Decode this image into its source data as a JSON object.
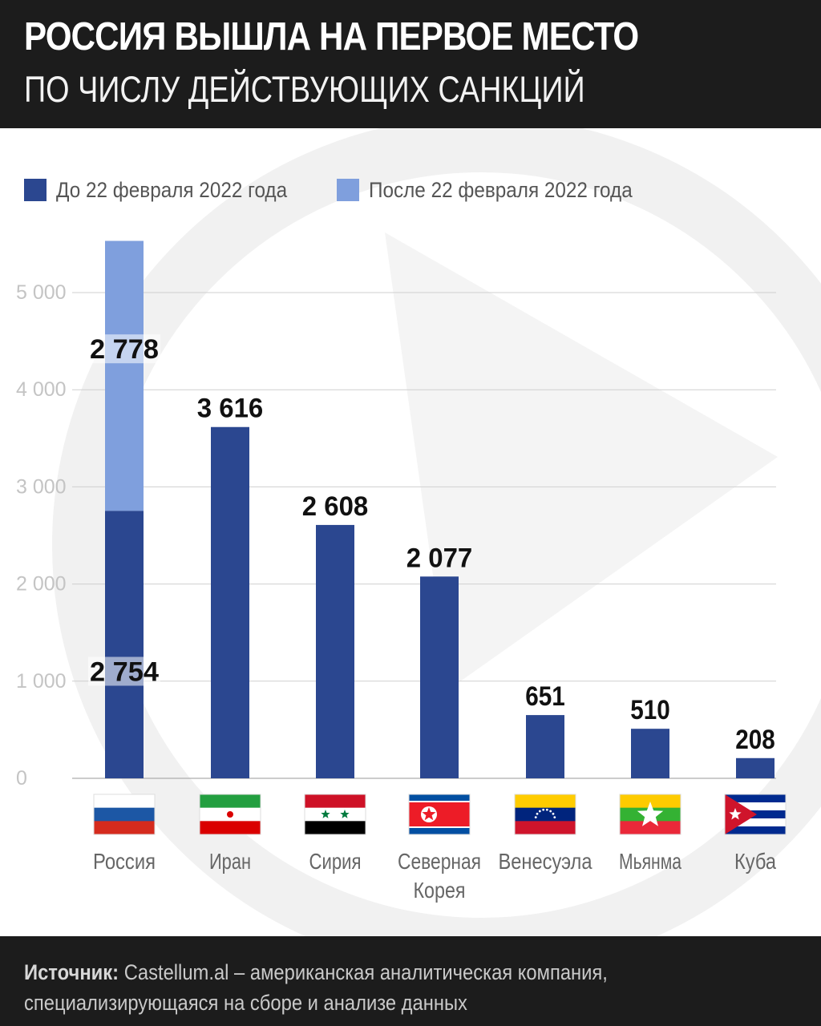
{
  "header": {
    "title": "РОССИЯ ВЫШЛА НА ПЕРВОЕ МЕСТО",
    "subtitle": "ПО ЧИСЛУ ДЕЙСТВУЮЩИХ САНКЦИЙ"
  },
  "colors": {
    "before": "#2b4790",
    "after": "#7f9fdd",
    "header_bg": "#1c1c1c"
  },
  "chart_data": {
    "type": "bar",
    "stacked": true,
    "title": "РОССИЯ ВЫШЛА НА ПЕРВОЕ МЕСТО",
    "subtitle": "ПО ЧИСЛУ ДЕЙСТВУЮЩИХ САНКЦИЙ",
    "categories": [
      "Россия",
      "Иран",
      "Сирия",
      "Северная Корея",
      "Венесуэла",
      "Мьянма",
      "Куба"
    ],
    "category_flags": [
      "flag-russia",
      "flag-iran",
      "flag-syria",
      "flag-north-korea",
      "flag-venezuela",
      "flag-myanmar",
      "flag-cuba"
    ],
    "series": [
      {
        "name": "До 22 февраля 2022 года",
        "values": [
          2754,
          3616,
          2608,
          2077,
          651,
          510,
          208
        ]
      },
      {
        "name": "После 22 февраля 2022 года",
        "values": [
          2778,
          0,
          0,
          0,
          0,
          0,
          0
        ]
      }
    ],
    "data_labels": [
      "2 754",
      "3 616",
      "2 608",
      "2 077",
      "651",
      "510",
      "208"
    ],
    "russia_after_label": "2 778",
    "y_ticks": [
      0,
      1000,
      2000,
      3000,
      4000,
      5000
    ],
    "y_tick_labels": [
      "0",
      "1 000",
      "2 000",
      "3 000",
      "4 000",
      "5 000"
    ],
    "ylim": [
      0,
      5600
    ],
    "grid": true,
    "legend_position": "top-left",
    "xlabel": "",
    "ylabel": ""
  },
  "footer": {
    "source_label": "Источник:",
    "source_text": "Castellum.al – американская аналитическая компания, специализирующаяся на сборе и анализе данных"
  }
}
